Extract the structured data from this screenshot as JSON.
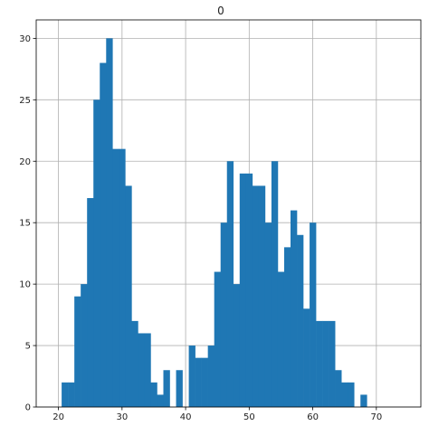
{
  "chart_data": {
    "type": "bar",
    "title": "0",
    "xlabel": "",
    "ylabel": "",
    "xlim": [
      16.5,
      77
    ],
    "ylim": [
      0,
      31.5
    ],
    "grid": true,
    "bar_color": "#1f77b4",
    "bin_width": 1,
    "x_ticks": [
      20,
      30,
      40,
      50,
      60,
      70
    ],
    "y_ticks": [
      0,
      5,
      10,
      15,
      20,
      25,
      30
    ],
    "bins": [
      {
        "x0": 20.5,
        "count": 2
      },
      {
        "x0": 21.5,
        "count": 2
      },
      {
        "x0": 22.5,
        "count": 9
      },
      {
        "x0": 23.5,
        "count": 10
      },
      {
        "x0": 24.5,
        "count": 17
      },
      {
        "x0": 25.5,
        "count": 25
      },
      {
        "x0": 26.5,
        "count": 28
      },
      {
        "x0": 27.5,
        "count": 30
      },
      {
        "x0": 28.5,
        "count": 21
      },
      {
        "x0": 29.5,
        "count": 21
      },
      {
        "x0": 30.5,
        "count": 18
      },
      {
        "x0": 31.5,
        "count": 7
      },
      {
        "x0": 32.5,
        "count": 6
      },
      {
        "x0": 33.5,
        "count": 6
      },
      {
        "x0": 34.5,
        "count": 2
      },
      {
        "x0": 35.5,
        "count": 1
      },
      {
        "x0": 36.5,
        "count": 3
      },
      {
        "x0": 37.5,
        "count": 0
      },
      {
        "x0": 38.5,
        "count": 3
      },
      {
        "x0": 39.5,
        "count": 0
      },
      {
        "x0": 40.5,
        "count": 5
      },
      {
        "x0": 41.5,
        "count": 4
      },
      {
        "x0": 42.5,
        "count": 4
      },
      {
        "x0": 43.5,
        "count": 5
      },
      {
        "x0": 44.5,
        "count": 11
      },
      {
        "x0": 45.5,
        "count": 15
      },
      {
        "x0": 46.5,
        "count": 20
      },
      {
        "x0": 47.5,
        "count": 10
      },
      {
        "x0": 48.5,
        "count": 19
      },
      {
        "x0": 49.5,
        "count": 19
      },
      {
        "x0": 50.5,
        "count": 18
      },
      {
        "x0": 51.5,
        "count": 18
      },
      {
        "x0": 52.5,
        "count": 15
      },
      {
        "x0": 53.5,
        "count": 20
      },
      {
        "x0": 54.5,
        "count": 11
      },
      {
        "x0": 55.5,
        "count": 13
      },
      {
        "x0": 56.5,
        "count": 16
      },
      {
        "x0": 57.5,
        "count": 14
      },
      {
        "x0": 58.5,
        "count": 8
      },
      {
        "x0": 59.5,
        "count": 15
      },
      {
        "x0": 60.5,
        "count": 7
      },
      {
        "x0": 61.5,
        "count": 7
      },
      {
        "x0": 62.5,
        "count": 7
      },
      {
        "x0": 63.5,
        "count": 3
      },
      {
        "x0": 64.5,
        "count": 2
      },
      {
        "x0": 65.5,
        "count": 2
      },
      {
        "x0": 66.5,
        "count": 0
      },
      {
        "x0": 67.5,
        "count": 1
      }
    ]
  }
}
